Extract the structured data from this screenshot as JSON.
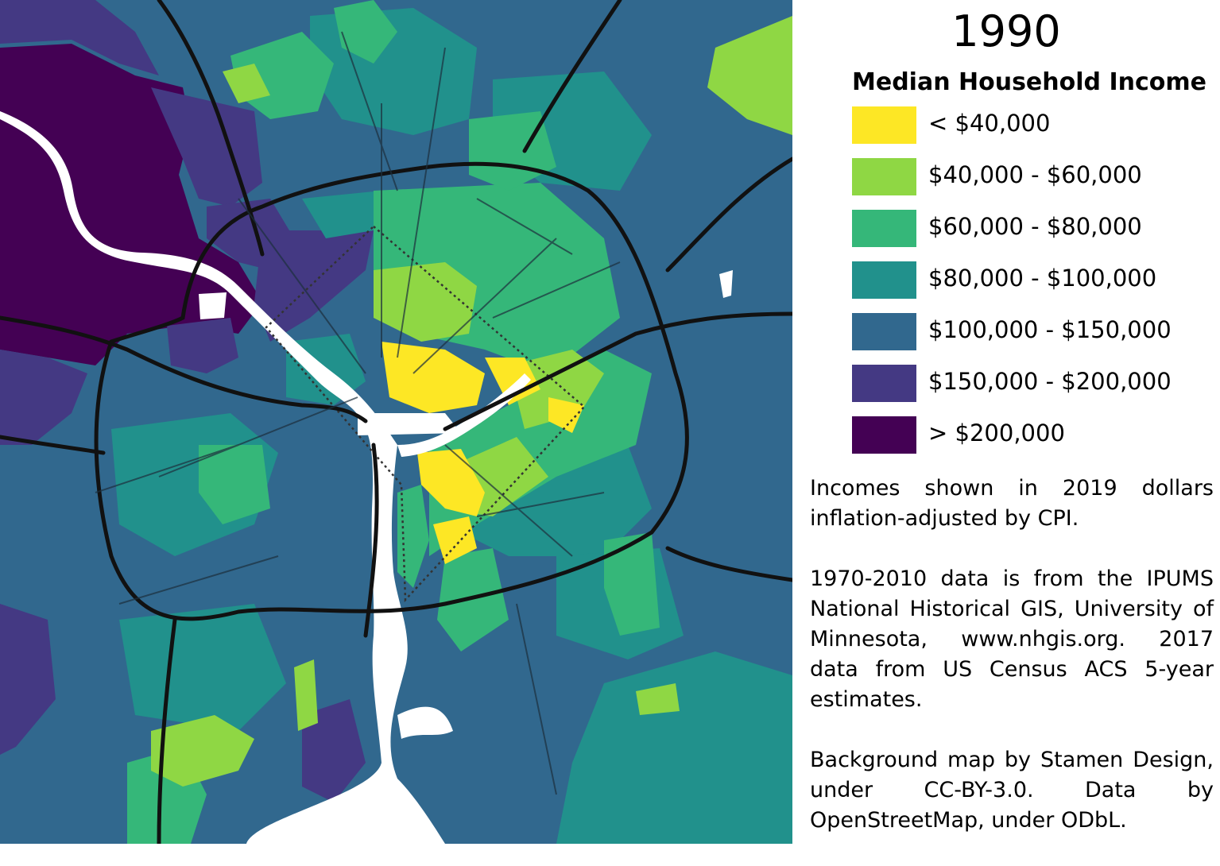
{
  "year": "1990",
  "legend": {
    "title": "Median Household Income",
    "items": [
      {
        "label": "< $40,000",
        "color": "#fde725"
      },
      {
        "label": "$40,000 - $60,000",
        "color": "#8fd744"
      },
      {
        "label": "$60,000 - $80,000",
        "color": "#35b779"
      },
      {
        "label": "$80,000 - $100,000",
        "color": "#21918c"
      },
      {
        "label": "$100,000 - $150,000",
        "color": "#31688e"
      },
      {
        "label": "$150,000 - $200,000",
        "color": "#443983"
      },
      {
        "label": "> $200,000",
        "color": "#440154"
      }
    ]
  },
  "notes": {
    "note1": "Incomes shown in 2019 dollars inflation-adjusted by CPI.",
    "note2": "1970-2010 data is from the IPUMS National Historical GIS, University of Minnesota, www.nhgis.org. 2017 data from US Census ACS 5-year estimates.",
    "note3": "Background map by Stamen Design, under CC-BY-3.0. Data by OpenStreetMap, under ODbL."
  }
}
